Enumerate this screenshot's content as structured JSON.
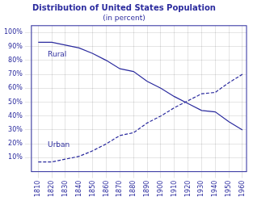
{
  "chart_data": {
    "type": "line",
    "title": "Distribution of United States Population",
    "subtitle": "(in percent)",
    "color": "#2B2B9E",
    "x": [
      1810,
      1820,
      1830,
      1840,
      1850,
      1860,
      1870,
      1880,
      1890,
      1900,
      1910,
      1920,
      1930,
      1940,
      1950,
      1960
    ],
    "series": [
      {
        "color": "#2B2B9E",
        "line_style": "solid",
        "values": [
          93,
          93,
          91,
          89,
          85,
          80,
          74,
          72,
          65,
          60,
          54,
          49,
          44,
          43,
          36,
          30
        ]
      },
      {
        "color": "#2B2B9E",
        "line_style": "dashed",
        "values": [
          7,
          7,
          9,
          11,
          15,
          20,
          26,
          28,
          35,
          40,
          46,
          51,
          56,
          57,
          64,
          70
        ]
      }
    ],
    "annotations": [
      {
        "text": "Rural",
        "x": 1817,
        "y": 84
      },
      {
        "text": "Urban",
        "x": 1817,
        "y": 19
      }
    ],
    "xlim": [
      1805,
      1963
    ],
    "xticks": [
      1810,
      1820,
      1830,
      1840,
      1850,
      1860,
      1870,
      1880,
      1890,
      1900,
      1910,
      1920,
      1930,
      1940,
      1950,
      1960
    ],
    "ylim": [
      0,
      105
    ],
    "yticks": [
      {
        "value": 10,
        "label": "10%"
      },
      {
        "value": 20,
        "label": "20%"
      },
      {
        "value": 30,
        "label": "30%"
      },
      {
        "value": 40,
        "label": "40%"
      },
      {
        "value": 50,
        "label": "50%"
      },
      {
        "value": 60,
        "label": "60%"
      },
      {
        "value": 70,
        "label": "70%"
      },
      {
        "value": 80,
        "label": "80%"
      },
      {
        "value": 90,
        "label": "90%"
      },
      {
        "value": 100,
        "label": "100%"
      }
    ],
    "grid": true
  }
}
